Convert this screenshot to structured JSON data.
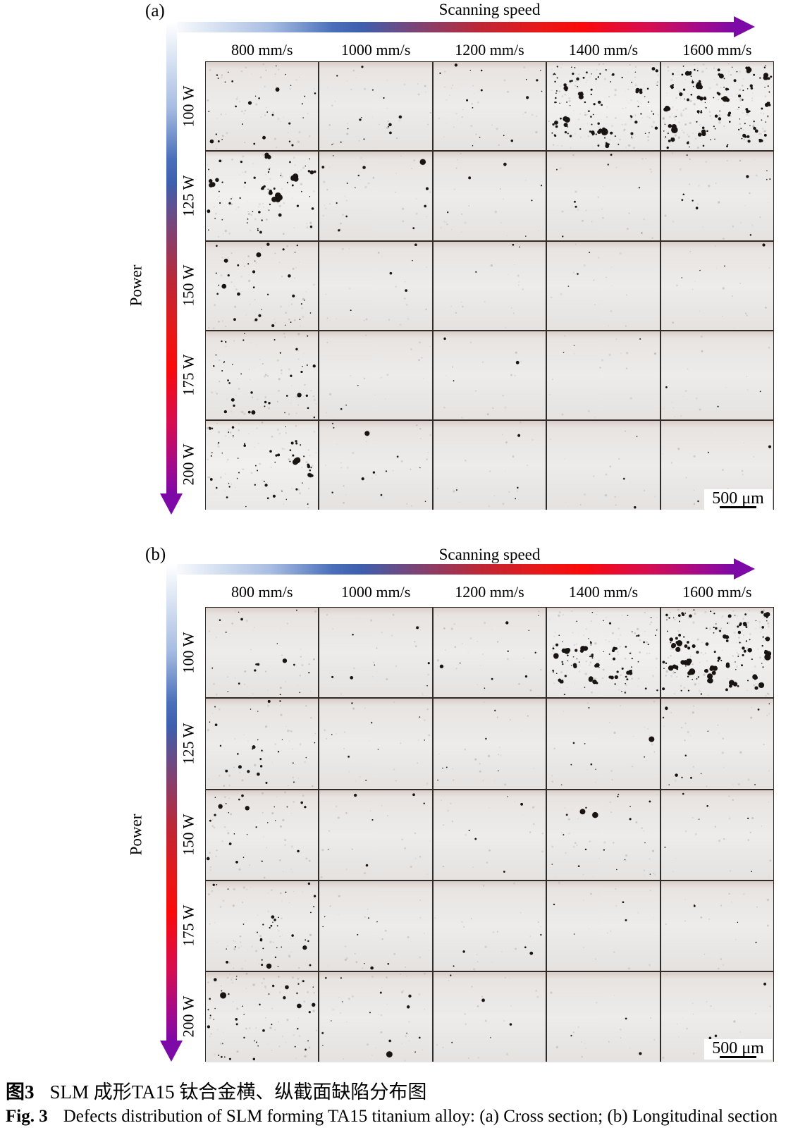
{
  "figure": {
    "panels": [
      {
        "label": "(a)",
        "axis_title": "Scanning speed",
        "power_title": "Power",
        "speeds": [
          "800 mm/s",
          "1000 mm/s",
          "1200 mm/s",
          "1400 mm/s",
          "1600 mm/s"
        ],
        "powers": [
          "100 W",
          "125 W",
          "150 W",
          "175 W",
          "200 W"
        ],
        "scale_bar": "500 μm",
        "defect_matrix": [
          [
            [
              28,
              2
            ],
            [
              14,
              0
            ],
            [
              16,
              0
            ],
            [
              70,
              14
            ],
            [
              88,
              22
            ]
          ],
          [
            [
              40,
              8
            ],
            [
              12,
              1
            ],
            [
              6,
              0
            ],
            [
              8,
              0
            ],
            [
              10,
              0
            ]
          ],
          [
            [
              30,
              3
            ],
            [
              5,
              0
            ],
            [
              3,
              0
            ],
            [
              3,
              0
            ],
            [
              4,
              0
            ]
          ],
          [
            [
              34,
              3
            ],
            [
              3,
              0
            ],
            [
              3,
              0
            ],
            [
              3,
              0
            ],
            [
              3,
              0
            ]
          ],
          [
            [
              38,
              7
            ],
            [
              10,
              1
            ],
            [
              4,
              0
            ],
            [
              3,
              0
            ],
            [
              3,
              0
            ]
          ]
        ]
      },
      {
        "label": "(b)",
        "axis_title": "Scanning speed",
        "power_title": "Power",
        "speeds": [
          "800 mm/s",
          "1000 mm/s",
          "1200 mm/s",
          "1400 mm/s",
          "1600 mm/s"
        ],
        "powers": [
          "100 W",
          "125 W",
          "150 W",
          "175 W",
          "200 W"
        ],
        "scale_bar": "500 μm",
        "defect_matrix": [
          [
            [
              16,
              1
            ],
            [
              7,
              0
            ],
            [
              10,
              0
            ],
            [
              58,
              12
            ],
            [
              78,
              24
            ]
          ],
          [
            [
              24,
              2
            ],
            [
              8,
              0
            ],
            [
              6,
              0
            ],
            [
              8,
              1
            ],
            [
              12,
              0
            ]
          ],
          [
            [
              22,
              2
            ],
            [
              6,
              0
            ],
            [
              5,
              0
            ],
            [
              16,
              2
            ],
            [
              6,
              0
            ]
          ],
          [
            [
              34,
              2
            ],
            [
              8,
              0
            ],
            [
              5,
              0
            ],
            [
              4,
              0
            ],
            [
              4,
              0
            ]
          ],
          [
            [
              40,
              5
            ],
            [
              14,
              1
            ],
            [
              5,
              0
            ],
            [
              3,
              0
            ],
            [
              4,
              0
            ]
          ]
        ]
      }
    ],
    "caption": {
      "zh_prefix": "图3",
      "zh_text": "SLM 成形TA15 钛合金横、纵截面缺陷分布图",
      "en_prefix": "Fig. 3",
      "en_text": "Defects distribution of SLM forming TA15 titanium alloy: (a) Cross section; (b) Longitudinal section"
    },
    "colors": {
      "gradient_blue": "#3d5fae",
      "gradient_red": "#fa0a0a",
      "gradient_purple": "#7d09a6",
      "grid_line": "#2e2b29",
      "cell_background": "#ecebe9",
      "defect_color": "#191411"
    }
  }
}
